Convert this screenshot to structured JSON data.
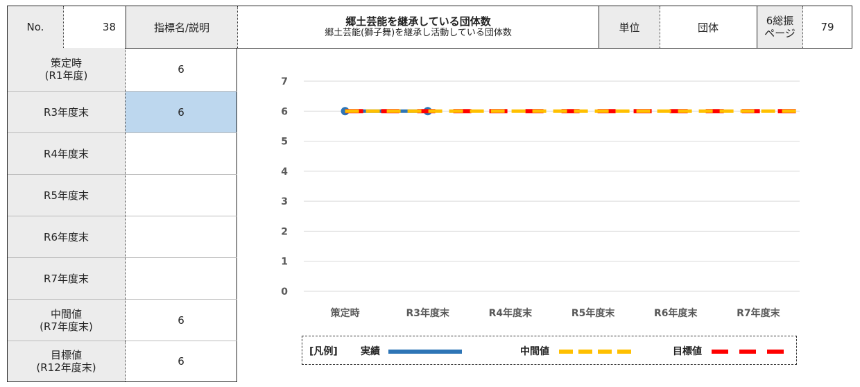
{
  "header": {
    "no_label": "No.",
    "no_value": "38",
    "indicator_label": "指標名/説明",
    "indicator_title": "郷土芸能を継承している団体数",
    "indicator_desc": "郷土芸能(獅子舞)を継承し活動している団体数",
    "unit_label": "単位",
    "unit_value": "団体",
    "page_label_1": "6総振",
    "page_label_2": "ページ",
    "page_value": "79"
  },
  "table": {
    "rows": [
      {
        "label1": "策定時",
        "label2": "(R1年度)",
        "value": "6"
      },
      {
        "label1": "R3年度末",
        "label2": "",
        "value": "6"
      },
      {
        "label1": "R4年度末",
        "label2": "",
        "value": ""
      },
      {
        "label1": "R5年度末",
        "label2": "",
        "value": ""
      },
      {
        "label1": "R6年度末",
        "label2": "",
        "value": ""
      },
      {
        "label1": "R7年度末",
        "label2": "",
        "value": ""
      },
      {
        "label1": "中間値",
        "label2": "(R7年度末)",
        "value": "6"
      },
      {
        "label1": "目標値",
        "label2": "(R12年度末)",
        "value": "6"
      }
    ]
  },
  "chart_data": {
    "type": "line",
    "categories": [
      "策定時",
      "R3年度末",
      "R4年度末",
      "R5年度末",
      "R6年度末",
      "R7年度末"
    ],
    "ylim": [
      0,
      7
    ],
    "yticks": [
      0,
      1,
      2,
      3,
      4,
      5,
      6,
      7
    ],
    "grid": true,
    "legend_position": "bottom",
    "series": [
      {
        "name": "実績",
        "values": [
          6,
          6,
          null,
          null,
          null,
          null
        ],
        "color": "#2e75b6",
        "style": "solid-with-markers"
      },
      {
        "name": "中間値",
        "values": [
          6,
          6,
          6,
          6,
          6,
          6
        ],
        "color": "#ffc000",
        "style": "dashed"
      },
      {
        "name": "目標値",
        "values": [
          6,
          6,
          6,
          6,
          6,
          6
        ],
        "color": "#ff0000",
        "style": "dashed"
      }
    ],
    "legend_prefix": "[凡例]"
  }
}
